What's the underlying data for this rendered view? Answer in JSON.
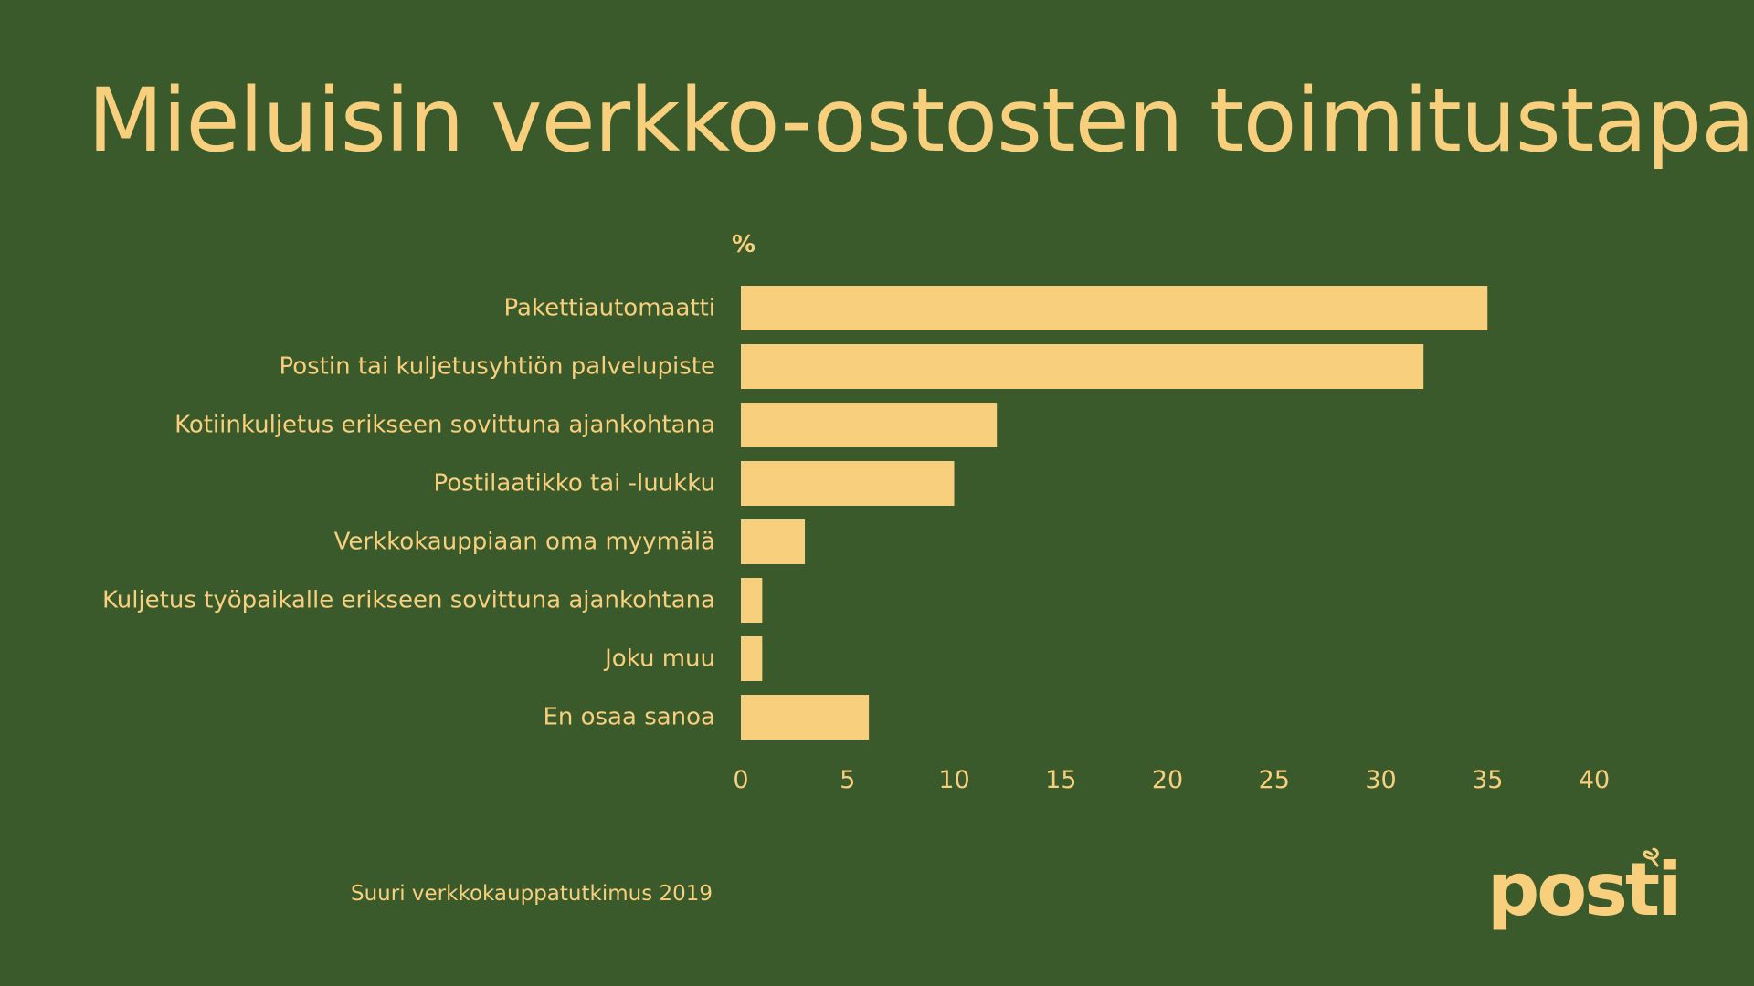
{
  "slide": {
    "title": "Mieluisin verkko-ostosten toimitustapa",
    "source": "Suuri verkkokauppatutkimus 2019",
    "logo_text": "posti"
  },
  "colors": {
    "background": "#3a5a2b",
    "accent": "#f7cf7d"
  },
  "chart_data": {
    "type": "bar",
    "orientation": "horizontal",
    "title": "Mieluisin verkko-ostosten toimitustapa",
    "unit_label": "%",
    "xlabel": "",
    "ylabel": "",
    "categories": [
      "Pakettiautomaatti",
      "Postin tai kuljetusyhtiön palvelupiste",
      "Kotiinkuljetus erikseen sovittuna ajankohtana",
      "Postilaatikko tai -luukku",
      "Verkkokauppiaan oma myymälä",
      "Kuljetus työpaikalle erikseen sovittuna ajankohtana",
      "Joku muu",
      "En osaa sanoa"
    ],
    "values": [
      35,
      32,
      12,
      10,
      3,
      1,
      1,
      6
    ],
    "xlim": [
      0,
      40
    ],
    "ticks": [
      0,
      5,
      10,
      15,
      20,
      25,
      30,
      35,
      40
    ],
    "grid": false,
    "legend": "none"
  }
}
